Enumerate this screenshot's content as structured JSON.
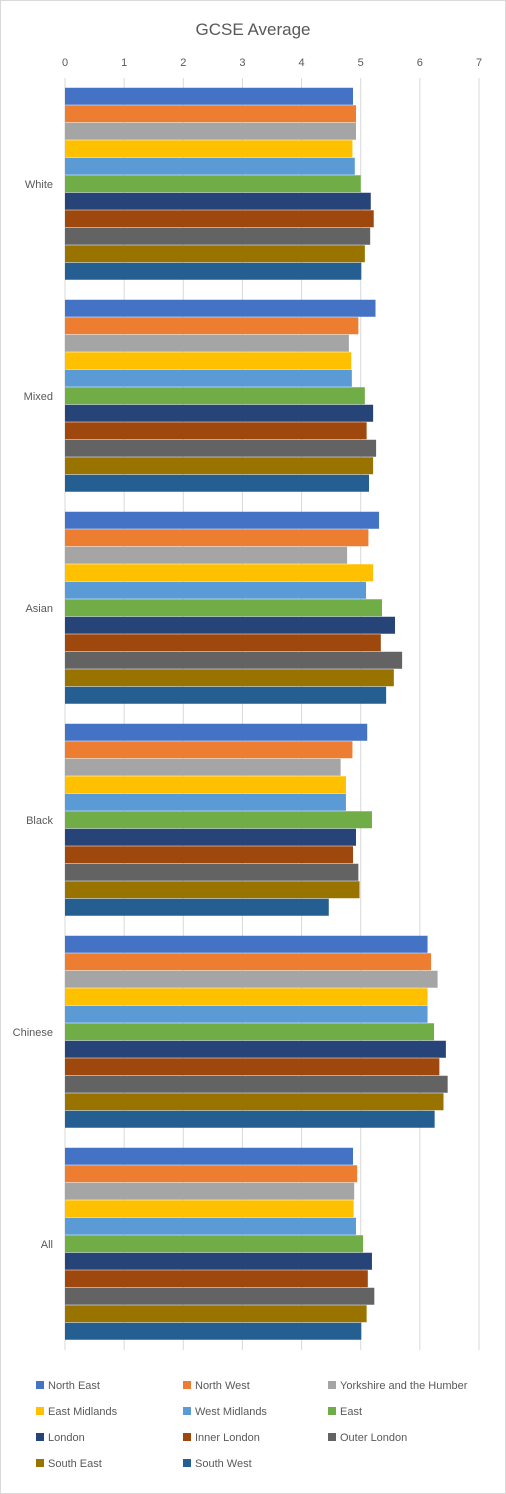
{
  "chart_data": {
    "type": "bar",
    "orientation": "horizontal",
    "title": "GCSE Average",
    "xlim": [
      0,
      7
    ],
    "x_ticks": [
      "0",
      "1",
      "2",
      "3",
      "4",
      "5",
      "6",
      "7"
    ],
    "grid": true,
    "legend_position": "bottom",
    "categories": [
      "White",
      "Mixed",
      "Asian",
      "Black",
      "Chinese",
      "All"
    ],
    "series": [
      {
        "name": "North East",
        "color": "#4472C4",
        "values": [
          4.87,
          5.25,
          5.31,
          5.11,
          6.13,
          4.87
        ]
      },
      {
        "name": "North West",
        "color": "#ED7D31",
        "values": [
          4.92,
          4.96,
          5.13,
          4.86,
          6.19,
          4.94
        ]
      },
      {
        "name": "Yorkshire and the Humber",
        "color": "#A5A5A5",
        "values": [
          4.92,
          4.8,
          4.77,
          4.66,
          6.3,
          4.89
        ]
      },
      {
        "name": "East Midlands",
        "color": "#FFC000",
        "values": [
          4.86,
          4.84,
          5.21,
          4.75,
          6.13,
          4.88
        ]
      },
      {
        "name": "West Midlands",
        "color": "#5B9BD5",
        "values": [
          4.9,
          4.85,
          5.09,
          4.75,
          6.13,
          4.92
        ]
      },
      {
        "name": "East",
        "color": "#70AD47",
        "values": [
          5.0,
          5.07,
          5.36,
          5.19,
          6.24,
          5.04
        ]
      },
      {
        "name": "London",
        "color": "#264478",
        "values": [
          5.17,
          5.21,
          5.58,
          4.92,
          6.44,
          5.19
        ]
      },
      {
        "name": "Inner London",
        "color": "#9E480E",
        "values": [
          5.22,
          5.1,
          5.34,
          4.87,
          6.33,
          5.12
        ]
      },
      {
        "name": "Outer London",
        "color": "#636363",
        "values": [
          5.16,
          5.26,
          5.7,
          4.96,
          6.47,
          5.23
        ]
      },
      {
        "name": "South East",
        "color": "#997300",
        "values": [
          5.07,
          5.21,
          5.56,
          4.98,
          6.4,
          5.1
        ]
      },
      {
        "name": "South West",
        "color": "#255E91",
        "values": [
          5.01,
          5.14,
          5.43,
          4.46,
          6.25,
          5.01
        ]
      }
    ]
  }
}
